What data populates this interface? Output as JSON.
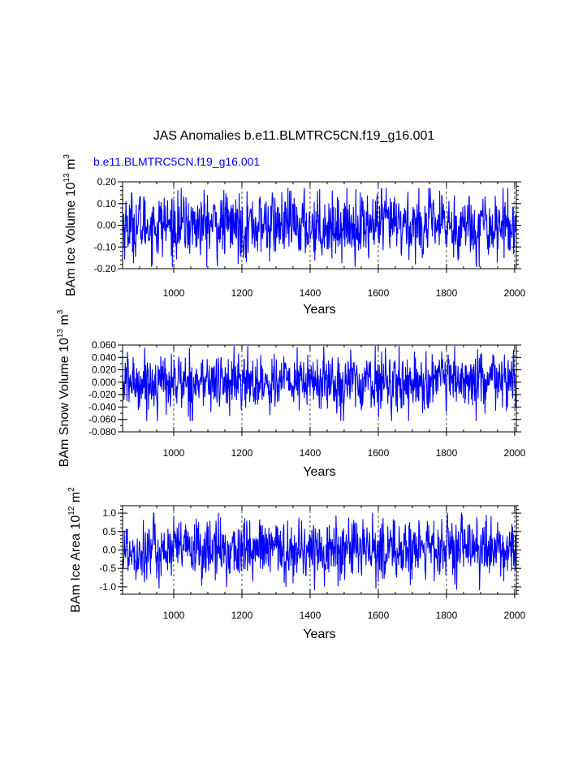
{
  "title": "JAS Anomalies b.e11.BLMTRC5CN.f19_g16.001",
  "colors": {
    "series": "#0000ff",
    "axis": "#000000",
    "background": "#ffffff"
  },
  "chart_data": [
    {
      "type": "line",
      "subtitle": "b.e11.BLMTRC5CN.f19_g16.001",
      "ylabel_main": "BAm Ice Volume 10",
      "ylabel_exp1": "13",
      "ylabel_unit": " m",
      "ylabel_exp2": "3",
      "xlabel": "Years",
      "xlim": [
        850,
        2005
      ],
      "ylim": [
        -0.2,
        0.2
      ],
      "x_ticks": [
        1000,
        1200,
        1400,
        1600,
        1800,
        2000
      ],
      "x_tick_labels": [
        "1000",
        "1200",
        "1400",
        "1600",
        "1800",
        "2000"
      ],
      "y_ticks": [
        -0.2,
        -0.1,
        0.0,
        0.1,
        0.2
      ],
      "y_tick_labels": [
        "-0.20",
        "-0.10",
        "0.00",
        "0.10",
        "0.20"
      ],
      "y_minor_step": 0.02,
      "vlines": [
        1000,
        1200,
        1400,
        1600,
        1800,
        2000
      ],
      "noise_amplitude": 0.072,
      "series": [
        {
          "name": "b.e11.BLMTRC5CN.f19_g16.001",
          "x_start": 850,
          "x_end": 2005,
          "values_range": [
            -0.19,
            0.17
          ]
        }
      ]
    },
    {
      "type": "line",
      "subtitle": "",
      "ylabel_main": "BAm Snow Volume 10",
      "ylabel_exp1": "13",
      "ylabel_unit": " m",
      "ylabel_exp2": "3",
      "xlabel": "Years",
      "xlim": [
        850,
        2005
      ],
      "ylim": [
        -0.08,
        0.06
      ],
      "x_ticks": [
        1000,
        1200,
        1400,
        1600,
        1800,
        2000
      ],
      "x_tick_labels": [
        "1000",
        "1200",
        "1400",
        "1600",
        "1800",
        "2000"
      ],
      "y_ticks": [
        -0.08,
        -0.06,
        -0.04,
        -0.02,
        0.0,
        0.02,
        0.04,
        0.06
      ],
      "y_tick_labels": [
        "-0.080",
        "-0.060",
        "-0.040",
        "-0.020",
        "0.000",
        "0.020",
        "0.040",
        "0.060"
      ],
      "y_minor_step": 0.01,
      "vlines": [
        1000,
        1200,
        1400,
        1600,
        1800,
        2000
      ],
      "noise_amplitude": 0.022,
      "series": [
        {
          "name": "b.e11.BLMTRC5CN.f19_g16.001",
          "x_start": 850,
          "x_end": 2005,
          "values_range": [
            -0.062,
            0.058
          ]
        }
      ]
    },
    {
      "type": "line",
      "subtitle": "",
      "ylabel_main": "BAm Ice Area 10",
      "ylabel_exp1": "12",
      "ylabel_unit": " m",
      "ylabel_exp2": "2",
      "xlabel": "Years",
      "xlim": [
        850,
        2005
      ],
      "ylim": [
        -1.2,
        1.2
      ],
      "x_ticks": [
        1000,
        1200,
        1400,
        1600,
        1800,
        2000
      ],
      "x_tick_labels": [
        "1000",
        "1200",
        "1400",
        "1600",
        "1800",
        "2000"
      ],
      "y_ticks": [
        -1.0,
        -0.5,
        0.0,
        0.5,
        1.0
      ],
      "y_tick_labels": [
        "-1.0",
        "-0.5",
        "0.0",
        "0.5",
        "1.0"
      ],
      "y_minor_step": 0.1,
      "vlines": [
        1000,
        1200,
        1400,
        1600,
        1800,
        2000
      ],
      "noise_amplitude": 0.4,
      "series": [
        {
          "name": "b.e11.BLMTRC5CN.f19_g16.001",
          "x_start": 850,
          "x_end": 2005,
          "values_range": [
            -1.08,
            1.0
          ]
        }
      ]
    }
  ]
}
